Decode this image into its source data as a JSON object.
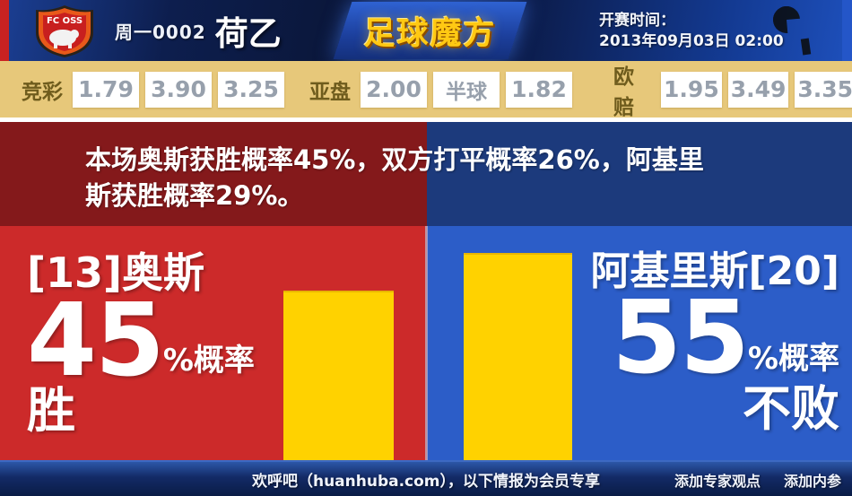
{
  "header": {
    "match_code": "周一0002",
    "league": "荷乙",
    "site_logo": "足球魔方",
    "kickoff_label": "开赛时间：",
    "kickoff_time": "2013年09月03日 02:00",
    "home_badge_text": "FC OSS"
  },
  "odds": {
    "jingcai": {
      "label": "竞彩",
      "values": [
        "1.79",
        "3.90",
        "3.25"
      ]
    },
    "yapan": {
      "label": "亚盘",
      "values": [
        "2.00",
        "半球",
        "1.82"
      ]
    },
    "oupei": {
      "label": "欧赔",
      "values": [
        "1.95",
        "3.49",
        "3.35"
      ]
    }
  },
  "summary": "本场奥斯获胜概率45%，双方打平概率26%，阿基里斯获胜概率29%。",
  "home": {
    "name": "[13]奥斯",
    "percent": "45",
    "percent_suffix": "%概率",
    "result": "胜"
  },
  "away": {
    "name": "阿基里斯[20]",
    "percent": "55",
    "percent_suffix": "%概率",
    "result": "不败"
  },
  "footer": {
    "note": "欢呼吧（huanhuba.com），以下情报为会员专享",
    "link_expert": "添加专家观点",
    "link_insider": "添加内参"
  },
  "probabilities": {
    "home_win": 45,
    "draw": 26,
    "away_win": 29,
    "away_unbeaten": 55
  },
  "chart_data": {
    "type": "bar",
    "categories": [
      "[13]奥斯 胜",
      "阿基里斯[20] 不败"
    ],
    "values": [
      45,
      55
    ],
    "title": "本场奥斯获胜概率45%，双方打平概率26%，阿基里斯获胜概率29%。",
    "xlabel": "",
    "ylabel": "概率 (%)",
    "ylim": [
      0,
      100
    ],
    "bar_color": "#ffd200",
    "grid": false,
    "legend": false
  },
  "colors": {
    "home_bright": "#cc2a2a",
    "home_dark": "#84191b",
    "away_bright": "#2c5dc8",
    "away_dark": "#1c3a7c",
    "bar_yellow": "#ffd200",
    "odds_bg": "#e7c87a",
    "topbar_navy": "#0a1535",
    "logo_gold": "#ffc913"
  }
}
